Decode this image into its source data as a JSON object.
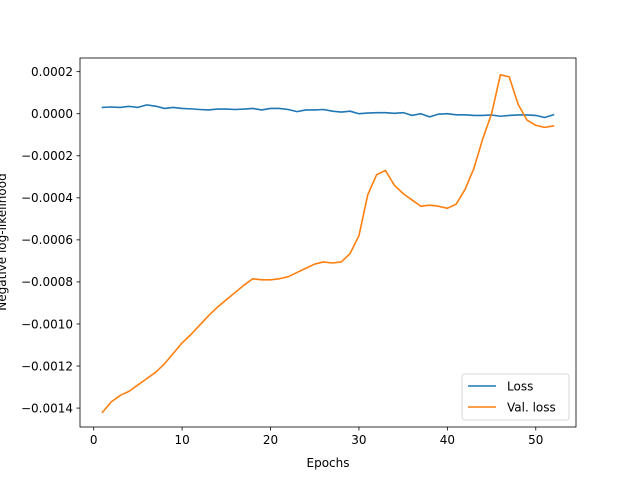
{
  "chart_data": {
    "type": "line",
    "title": "",
    "xlabel": "Epochs",
    "ylabel": "Negative log-likelihood",
    "xlim": [
      -1.55,
      54.55
    ],
    "ylim": [
      -0.00149,
      0.000265
    ],
    "xticks": [
      0,
      10,
      20,
      30,
      40,
      50
    ],
    "yticks": [
      0.0002,
      0.0,
      -0.0002,
      -0.0004,
      -0.0006,
      -0.0008,
      -0.001,
      -0.0012,
      -0.0014
    ],
    "xtick_labels": [
      "0",
      "10",
      "20",
      "30",
      "40",
      "50"
    ],
    "ytick_labels": [
      "0.0002",
      "0.0000",
      "−0.0002",
      "−0.0004",
      "−0.0006",
      "−0.0008",
      "−0.0010",
      "−0.0012",
      "−0.0014"
    ],
    "grid": false,
    "legend_position": "lower-right",
    "x": [
      1,
      2,
      3,
      4,
      5,
      6,
      7,
      8,
      9,
      10,
      11,
      12,
      13,
      14,
      15,
      16,
      17,
      18,
      19,
      20,
      21,
      22,
      23,
      24,
      25,
      26,
      27,
      28,
      29,
      30,
      31,
      32,
      33,
      34,
      35,
      36,
      37,
      38,
      39,
      40,
      41,
      42,
      43,
      44,
      45,
      46,
      47,
      48,
      49,
      50,
      51,
      52
    ],
    "series": [
      {
        "name": "Loss",
        "color": "#1f77b4",
        "values": [
          3e-05,
          3.2e-05,
          3e-05,
          3.5e-05,
          3e-05,
          4.2e-05,
          3.6e-05,
          2.5e-05,
          3e-05,
          2.5e-05,
          2.3e-05,
          2e-05,
          1.8e-05,
          2.2e-05,
          2.2e-05,
          2e-05,
          2.2e-05,
          2.5e-05,
          1.8e-05,
          2.5e-05,
          2.5e-05,
          2e-05,
          1e-05,
          1.8e-05,
          1.8e-05,
          2e-05,
          1.2e-05,
          8e-06,
          1.2e-05,
          0.0,
          3e-06,
          5e-06,
          5e-06,
          2e-06,
          5e-06,
          -8e-06,
          0.0,
          -1.5e-05,
          -2e-06,
          0.0,
          -5e-06,
          -5e-06,
          -8e-06,
          -8e-06,
          -6e-06,
          -1.2e-05,
          -8e-06,
          -6e-06,
          -6e-06,
          -8e-06,
          -1.8e-05,
          -5e-06
        ]
      },
      {
        "name": "Val. loss",
        "color": "#ff7f0e",
        "values": [
          -0.00142,
          -0.00137,
          -0.00134,
          -0.00132,
          -0.00129,
          -0.00126,
          -0.00123,
          -0.00119,
          -0.00114,
          -0.00109,
          -0.00105,
          -0.001005,
          -0.00096,
          -0.00092,
          -0.000885,
          -0.00085,
          -0.000815,
          -0.000785,
          -0.00079,
          -0.00079,
          -0.000785,
          -0.000775,
          -0.000755,
          -0.000735,
          -0.000715,
          -0.000705,
          -0.00071,
          -0.000705,
          -0.000665,
          -0.00058,
          -0.000385,
          -0.00029,
          -0.00027,
          -0.00034,
          -0.00038,
          -0.00041,
          -0.00044,
          -0.000435,
          -0.00044,
          -0.00045,
          -0.00043,
          -0.00036,
          -0.00026,
          -0.00012,
          0.0,
          0.000185,
          0.000175,
          4.5e-05,
          -3e-05,
          -5.5e-05,
          -6.5e-05,
          -5.8e-05
        ]
      }
    ]
  }
}
